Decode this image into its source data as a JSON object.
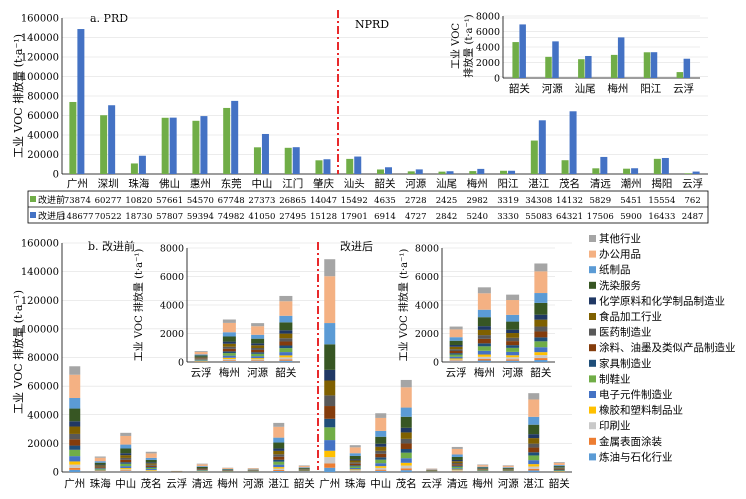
{
  "colors": {
    "before": "#70ad47",
    "after": "#4472c4",
    "divider": "#e8292b",
    "grid": "#000000"
  },
  "chart_data": [
    {
      "id": "a-main",
      "type": "bar",
      "panel_label": "a. PRD",
      "region_label": "NPRD",
      "ylabel": "工业 VOC 排放量 (t·a⁻¹)",
      "ylim": [
        0,
        160000
      ],
      "yticks": [
        0,
        20000,
        40000,
        60000,
        80000,
        100000,
        120000,
        140000,
        160000
      ],
      "categories": [
        "广州",
        "深圳",
        "珠海",
        "佛山",
        "惠州",
        "东莞",
        "中山",
        "江门",
        "肇庆",
        "汕头",
        "韶关",
        "河源",
        "汕尾",
        "梅州",
        "阳江",
        "湛江",
        "茂名",
        "清远",
        "潮州",
        "揭阳",
        "云浮"
      ],
      "series": [
        {
          "name": "改进前",
          "values": [
            73874,
            60277,
            10820,
            57661,
            54570,
            67748,
            27373,
            26865,
            14047,
            15492,
            4635,
            2728,
            2425,
            2982,
            3319,
            34308,
            14132,
            5829,
            5451,
            15554,
            762
          ]
        },
        {
          "name": "改进后",
          "values": [
            148677,
            70522,
            18730,
            57807,
            59394,
            74982,
            41050,
            27495,
            15128,
            17901,
            6914,
            4727,
            2842,
            5240,
            3330,
            55083,
            64321,
            17506,
            5900,
            16433,
            2487
          ]
        }
      ]
    },
    {
      "id": "a-inset",
      "type": "bar",
      "ylabel_lines": [
        "工业 VOC",
        "排放量 (t·a⁻¹)"
      ],
      "ylim": [
        0,
        8000
      ],
      "yticks": [
        0,
        2000,
        4000,
        6000,
        8000
      ],
      "categories": [
        "韶关",
        "河源",
        "汕尾",
        "梅州",
        "阳江",
        "云浮"
      ],
      "series": [
        {
          "name": "改进前",
          "values": [
            4635,
            2728,
            2425,
            2982,
            3319,
            762
          ]
        },
        {
          "name": "改进后",
          "values": [
            6914,
            4727,
            2842,
            5240,
            3330,
            2487
          ]
        }
      ]
    },
    {
      "id": "b-main",
      "type": "bar",
      "stacked": true,
      "panel_label_before": "b. 改进前",
      "panel_label_after": "改进后",
      "ylabel": "工业 VOC 排放量 (t·a⁻¹)",
      "ylim": [
        0,
        160000
      ],
      "yticks": [
        0,
        20000,
        40000,
        60000,
        80000,
        100000,
        120000,
        140000,
        160000
      ],
      "categories_before": [
        "广州",
        "珠海",
        "中山",
        "茂名",
        "云浮",
        "清远",
        "梅州",
        "河源",
        "湛江",
        "韶关"
      ],
      "categories_after": [
        "广州",
        "珠海",
        "中山",
        "茂名",
        "云浮",
        "清远",
        "梅州",
        "河源",
        "湛江",
        "韶关"
      ],
      "totals_before": [
        73874,
        10820,
        27373,
        14132,
        762,
        5829,
        2982,
        2728,
        34308,
        4635
      ],
      "totals_after": [
        148677,
        18730,
        41050,
        64321,
        2487,
        17506,
        5240,
        4727,
        55083,
        6914
      ]
    },
    {
      "id": "b-inset-before",
      "type": "bar",
      "stacked": true,
      "ylabel": "工业 VOC 排放量 (t·a⁻¹)",
      "ylim": [
        0,
        8000
      ],
      "yticks": [
        0,
        2000,
        4000,
        6000,
        8000
      ],
      "categories": [
        "云浮",
        "梅州",
        "河源",
        "韶关"
      ],
      "totals": [
        762,
        2982,
        2728,
        4635
      ]
    },
    {
      "id": "b-inset-after",
      "type": "bar",
      "stacked": true,
      "ylabel": "工业 VOC 排放量 (t·a⁻¹)",
      "ylim": [
        0,
        8000
      ],
      "yticks": [
        0,
        2000,
        4000,
        6000,
        8000
      ],
      "categories": [
        "云浮",
        "梅州",
        "河源",
        "韶关"
      ],
      "totals": [
        2487,
        5240,
        4727,
        6914
      ]
    }
  ],
  "legend": [
    {
      "label": "其他行业",
      "color": "#a5a5a5"
    },
    {
      "label": "办公用品",
      "color": "#f4b183"
    },
    {
      "label": "纸制品",
      "color": "#5b9bd5"
    },
    {
      "label": "洗染服务",
      "color": "#375623"
    },
    {
      "label": "化学原料和化学制品制造业",
      "color": "#203864"
    },
    {
      "label": "食品加工行业",
      "color": "#7f6000"
    },
    {
      "label": "医药制造业",
      "color": "#595959"
    },
    {
      "label": "涂料、油墨及类似产品制造业",
      "color": "#843c0c"
    },
    {
      "label": "家具制造业",
      "color": "#1f4e79"
    },
    {
      "label": "制鞋业",
      "color": "#70ad47"
    },
    {
      "label": "电子元件制造业",
      "color": "#4472c4"
    },
    {
      "label": "橡胶和塑料制品业",
      "color": "#ffc000"
    },
    {
      "label": "印刷业",
      "color": "#c9c9c9"
    },
    {
      "label": "金属表面涂装",
      "color": "#ed7d31"
    },
    {
      "label": "炼油与石化行业",
      "color": "#5b9bd5"
    }
  ],
  "stack_shares": [
    0.08,
    0.22,
    0.1,
    0.12,
    0.05,
    0.07,
    0.05,
    0.06,
    0.04,
    0.06,
    0.05,
    0.03,
    0.03,
    0.02,
    0.02
  ],
  "table": {
    "row_labels": [
      "改进前",
      "改进后"
    ]
  }
}
